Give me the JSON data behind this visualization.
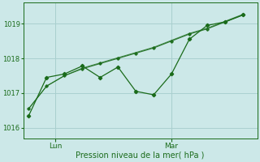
{
  "xlabel": "Pression niveau de la mer( hPa )",
  "background_color": "#cce8e8",
  "grid_color": "#aad0d0",
  "line_color": "#1a6b1a",
  "text_color": "#1a6b1a",
  "ylim": [
    1015.7,
    1019.6
  ],
  "yticks": [
    1016,
    1017,
    1018,
    1019
  ],
  "smooth_x": [
    0,
    1,
    2,
    3,
    4,
    5,
    6,
    7,
    8,
    9,
    10,
    11,
    12
  ],
  "smooth_y": [
    1016.55,
    1017.2,
    1017.5,
    1017.7,
    1017.85,
    1018.0,
    1018.15,
    1018.3,
    1018.5,
    1018.7,
    1018.85,
    1019.05,
    1019.25
  ],
  "smooth2_y": [
    1016.55,
    1017.2,
    1017.5,
    1017.72,
    1017.87,
    1018.02,
    1018.17,
    1018.32,
    1018.52,
    1018.72,
    1018.87,
    1019.07,
    1019.27
  ],
  "jagged_x": [
    0,
    1,
    2,
    3,
    4,
    5,
    6,
    7,
    8,
    9,
    10,
    11,
    12
  ],
  "jagged_y": [
    1016.35,
    1017.45,
    1017.55,
    1017.78,
    1017.45,
    1017.75,
    1017.05,
    1016.95,
    1017.55,
    1018.55,
    1018.95,
    1019.05,
    1019.25
  ],
  "lun_x": 1.5,
  "mar_x": 8.0,
  "xtick_positions": [
    1.5,
    8.0
  ],
  "xtick_labels": [
    "Lun",
    "Mar"
  ],
  "figsize": [
    3.2,
    2.0
  ],
  "dpi": 100
}
